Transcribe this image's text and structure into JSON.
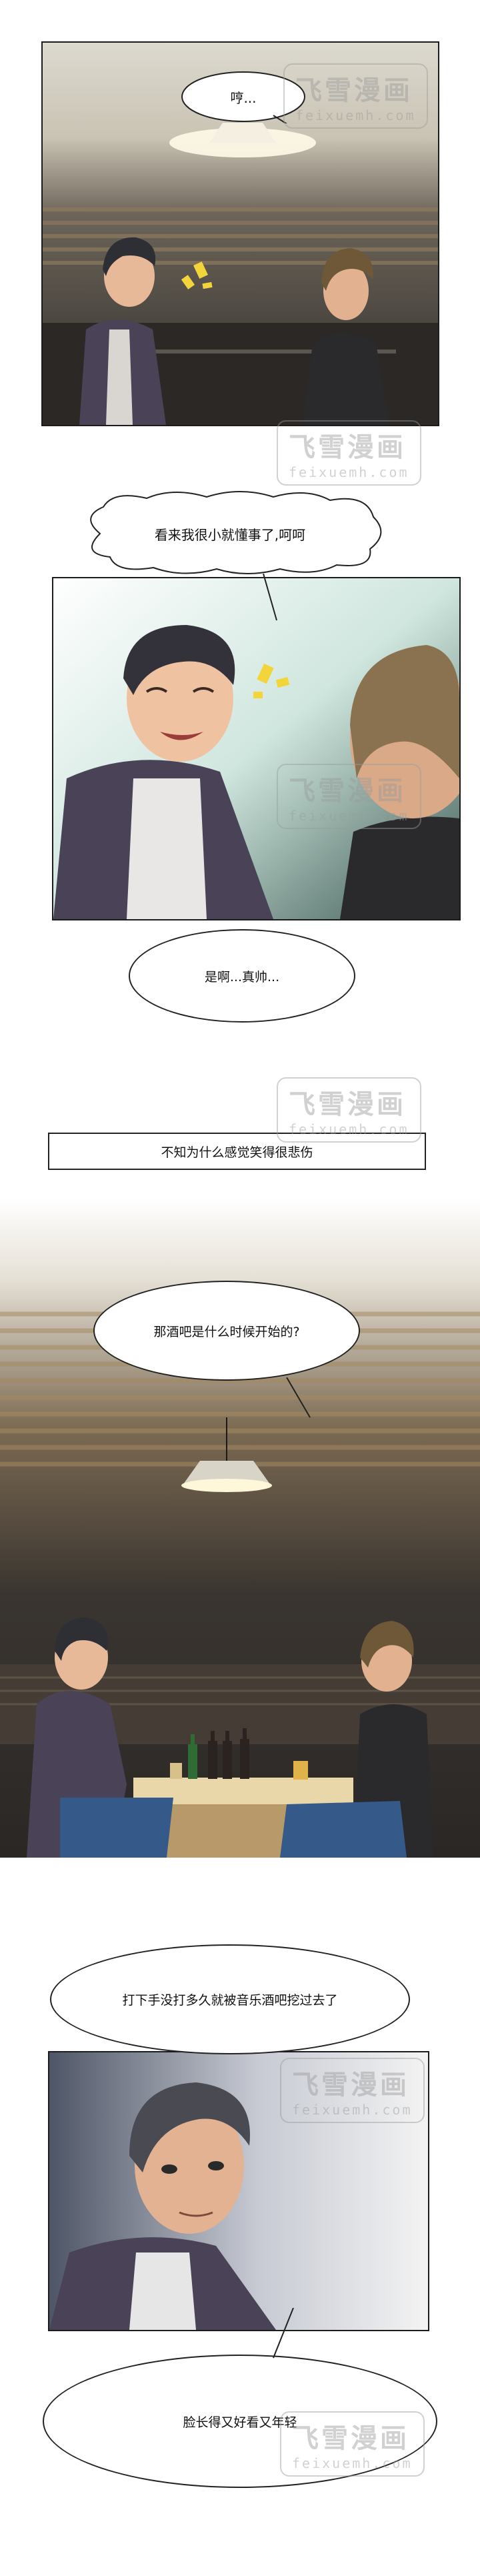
{
  "panels": {
    "p1": {
      "bubble": "哼..."
    },
    "p2": {
      "bubble_top": "看来我很小就懂事了,呵呵"
    },
    "p3": {
      "bubble": "是啊...真帅..."
    },
    "p4": {
      "caption": "不知为什么感觉笑得很悲伤"
    },
    "p5": {
      "bubble": "那酒吧是什么时候开始的?"
    },
    "p6": {
      "bubble": "打下手没打多久就被音乐酒吧挖过去了"
    },
    "p7": {
      "bubble": "脸长得又好看又年轻"
    }
  },
  "watermark": {
    "cn": "飞雪漫画",
    "en": "feixuemh.com"
  },
  "colors": {
    "ink": "#111111",
    "border": "#1c1c1c",
    "jacket": "#4a4358",
    "shirt_dark": "#2a2a2c"
  }
}
